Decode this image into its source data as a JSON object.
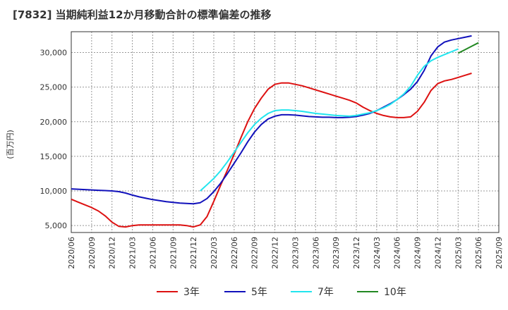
{
  "title": "[7832]  当期純利益12か月移動合計の標準偏差の推移",
  "chart_data": {
    "type": "line",
    "title": "[7832]  当期純利益12か月移動合計の標準偏差の推移",
    "ylabel": "(百万円)",
    "xlabel": "",
    "ylim": [
      4000,
      33000
    ],
    "yticks": [
      5000,
      10000,
      15000,
      20000,
      25000,
      30000
    ],
    "ytick_labels": [
      "5,000",
      "10,000",
      "15,000",
      "20,000",
      "25,000",
      "30,000"
    ],
    "xticks": [
      "2020/06",
      "2020/09",
      "2020/12",
      "2021/03",
      "2021/06",
      "2021/09",
      "2021/12",
      "2022/03",
      "2022/06",
      "2022/09",
      "2022/12",
      "2023/03",
      "2023/06",
      "2023/09",
      "2023/12",
      "2024/03",
      "2024/06",
      "2024/09",
      "2024/12",
      "2025/03",
      "2025/06",
      "2025/09"
    ],
    "grid": true,
    "legend_position": "bottom",
    "series": [
      {
        "name": "3年",
        "color": "#dd1111",
        "start": "2020/06",
        "values": [
          8800,
          8400,
          8000,
          7600,
          7100,
          6400,
          5500,
          4900,
          4800,
          5000,
          5100,
          5100,
          5100,
          5100,
          5100,
          5100,
          5100,
          5000,
          4800,
          5100,
          6300,
          8500,
          10800,
          13000,
          15300,
          17700,
          20000,
          21900,
          23400,
          24700,
          25400,
          25600,
          25600,
          25400,
          25200,
          24900,
          24600,
          24300,
          24000,
          23700,
          23400,
          23100,
          22700,
          22100,
          21600,
          21200,
          20900,
          20700,
          20600,
          20600,
          20700,
          21500,
          22800,
          24500,
          25500,
          25900,
          26100,
          26400,
          26700,
          27000
        ]
      },
      {
        "name": "5年",
        "color": "#1111bb",
        "start": "2020/06",
        "values": [
          10300,
          10250,
          10200,
          10150,
          10100,
          10050,
          10000,
          9900,
          9700,
          9400,
          9150,
          8950,
          8750,
          8600,
          8450,
          8350,
          8250,
          8200,
          8150,
          8300,
          8900,
          9900,
          11100,
          12500,
          14000,
          15500,
          17100,
          18500,
          19600,
          20400,
          20800,
          21000,
          21000,
          20950,
          20850,
          20750,
          20700,
          20650,
          20650,
          20600,
          20600,
          20650,
          20750,
          20950,
          21200,
          21600,
          22100,
          22600,
          23200,
          23900,
          24700,
          25800,
          27400,
          29500,
          30800,
          31500,
          31800,
          32000,
          32200,
          32400
        ]
      },
      {
        "name": "7年",
        "color": "#22e5ee",
        "start": "2022/01",
        "values": [
          10000,
          10900,
          11800,
          12900,
          14200,
          15600,
          17000,
          18400,
          19600,
          20500,
          21200,
          21600,
          21700,
          21700,
          21600,
          21500,
          21350,
          21200,
          21100,
          21000,
          20900,
          20850,
          20800,
          20900,
          21100,
          21300,
          21600,
          22000,
          22500,
          23200,
          24000,
          25100,
          26700,
          28000,
          28800,
          29300,
          29700,
          30100,
          30500
        ]
      },
      {
        "name": "10年",
        "color": "#228822",
        "start": "2025/03",
        "values": [
          29900,
          30400,
          30900,
          31400
        ]
      }
    ]
  }
}
